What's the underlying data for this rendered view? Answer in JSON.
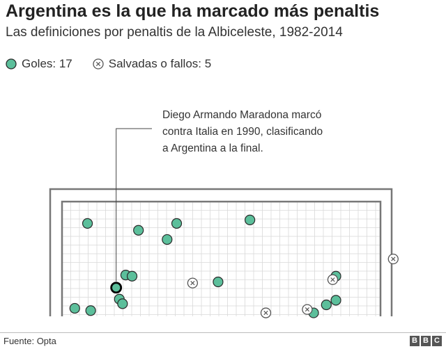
{
  "title": "Argentina es la que ha marcado más penaltis",
  "subtitle": "Las definiciones por penaltis de la Albiceleste, 1982-2014",
  "legend": {
    "goals_label": "Goles: 17",
    "missed_label": "Salvadas o fallos: 5"
  },
  "annotation": {
    "lines": [
      "Diego Armando Maradona marcó",
      "contra Italia en 1990, clasificando",
      "a Argentina a la final."
    ]
  },
  "footer": {
    "source": "Fuente: Opta",
    "logo": [
      "B",
      "B",
      "C"
    ]
  },
  "colors": {
    "goal": "#5cbf9b",
    "goal_stroke": "#2a2a2a",
    "missed_fill": "#ffffff",
    "missed_stroke": "#555555",
    "net_grid": "#d9d9d9",
    "frame": "#777777"
  },
  "chart_data": {
    "type": "scatter",
    "title": "",
    "xlabel": "",
    "ylabel": "",
    "series": [
      {
        "name": "Goles",
        "outcome": "goal",
        "points": [
          {
            "x": 0.08,
            "y": 0.81
          },
          {
            "x": 0.24,
            "y": 0.75
          },
          {
            "x": 0.36,
            "y": 0.81
          },
          {
            "x": 0.33,
            "y": 0.67
          },
          {
            "x": 0.59,
            "y": 0.84
          },
          {
            "x": 0.2,
            "y": 0.36
          },
          {
            "x": 0.22,
            "y": 0.35
          },
          {
            "x": 0.49,
            "y": 0.3
          },
          {
            "x": 0.18,
            "y": 0.15
          },
          {
            "x": 0.19,
            "y": 0.11
          },
          {
            "x": 0.04,
            "y": 0.07
          },
          {
            "x": 0.09,
            "y": 0.05
          },
          {
            "x": 0.86,
            "y": 0.35
          },
          {
            "x": 0.86,
            "y": 0.14
          },
          {
            "x": 0.83,
            "y": 0.1
          },
          {
            "x": 0.79,
            "y": 0.03
          },
          {
            "x": 0.17,
            "y": 0.25,
            "highlight": true
          }
        ]
      },
      {
        "name": "Salvadas o fallos",
        "outcome": "missed",
        "points": [
          {
            "x": 0.41,
            "y": 0.29
          },
          {
            "x": 0.64,
            "y": 0.03
          },
          {
            "x": 0.77,
            "y": 0.06
          },
          {
            "x": 0.85,
            "y": 0.32
          },
          {
            "x": 1.04,
            "y": 0.5
          }
        ]
      }
    ]
  }
}
